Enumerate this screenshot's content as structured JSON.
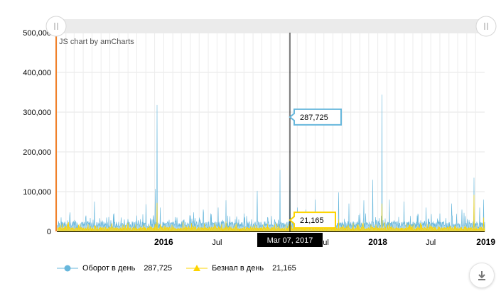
{
  "chart_data": {
    "type": "area",
    "credit": "JS chart by amCharts",
    "y_ticks": [
      "0",
      "100,000",
      "200,000",
      "300,000",
      "400,000",
      "500,000"
    ],
    "ylim": [
      0,
      500000
    ],
    "x_range": [
      "2015-01-01",
      "2019-01-01"
    ],
    "x_ticks": [
      {
        "label": "2016",
        "date": "2016-01-01",
        "major": true
      },
      {
        "label": "Jul",
        "date": "2016-07-01",
        "major": false
      },
      {
        "label": "Jul",
        "date": "2017-07-01",
        "major": false
      },
      {
        "label": "2018",
        "date": "2018-01-01",
        "major": true
      },
      {
        "label": "Jul",
        "date": "2018-07-01",
        "major": false
      },
      {
        "label": "2019",
        "date": "2019-01-01",
        "major": true
      }
    ],
    "grid": true,
    "series": [
      {
        "name": "Оборот в день",
        "color": "#67b7dc",
        "peaks": [
          {
            "date": "2015-01-05",
            "value": 10000
          },
          {
            "date": "2015-02-14",
            "value": 38000
          },
          {
            "date": "2015-04-01",
            "value": 22000
          },
          {
            "date": "2015-05-10",
            "value": 75000
          },
          {
            "date": "2015-07-04",
            "value": 28000
          },
          {
            "date": "2015-08-20",
            "value": 30000
          },
          {
            "date": "2015-10-01",
            "value": 40000
          },
          {
            "date": "2015-11-01",
            "value": 68000
          },
          {
            "date": "2015-11-20",
            "value": 30000
          },
          {
            "date": "2015-12-03",
            "value": 107000
          },
          {
            "date": "2015-12-09",
            "value": 318000
          },
          {
            "date": "2015-12-20",
            "value": 60000
          },
          {
            "date": "2016-02-15",
            "value": 35000
          },
          {
            "date": "2016-04-01",
            "value": 40000
          },
          {
            "date": "2016-05-15",
            "value": 55000
          },
          {
            "date": "2016-06-10",
            "value": 45000
          },
          {
            "date": "2016-07-05",
            "value": 60000
          },
          {
            "date": "2016-08-01",
            "value": 78000
          },
          {
            "date": "2016-10-01",
            "value": 45000
          },
          {
            "date": "2016-11-15",
            "value": 102000
          },
          {
            "date": "2016-12-20",
            "value": 35000
          },
          {
            "date": "2017-02-01",
            "value": 155000
          },
          {
            "date": "2017-03-07",
            "value": 287725
          },
          {
            "date": "2017-04-01",
            "value": 60000
          },
          {
            "date": "2017-05-01",
            "value": 55000
          },
          {
            "date": "2017-06-01",
            "value": 80000
          },
          {
            "date": "2017-07-15",
            "value": 45000
          },
          {
            "date": "2017-08-20",
            "value": 98000
          },
          {
            "date": "2017-09-25",
            "value": 70000
          },
          {
            "date": "2017-11-01",
            "value": 45000
          },
          {
            "date": "2017-11-15",
            "value": 78000
          },
          {
            "date": "2017-12-15",
            "value": 130000
          },
          {
            "date": "2018-01-15",
            "value": 344000
          },
          {
            "date": "2018-02-10",
            "value": 80000
          },
          {
            "date": "2018-04-01",
            "value": 75000
          },
          {
            "date": "2018-05-15",
            "value": 40000
          },
          {
            "date": "2018-06-15",
            "value": 60000
          },
          {
            "date": "2018-08-01",
            "value": 45000
          },
          {
            "date": "2018-09-10",
            "value": 70000
          },
          {
            "date": "2018-10-15",
            "value": 55000
          },
          {
            "date": "2018-11-25",
            "value": 135000
          },
          {
            "date": "2018-12-15",
            "value": 60000
          },
          {
            "date": "2018-12-28",
            "value": 80000
          }
        ]
      },
      {
        "name": "Безнал в день",
        "color": "#fdd400",
        "peaks": [
          {
            "date": "2015-12-09",
            "value": 72000
          },
          {
            "date": "2016-08-01",
            "value": 25000
          },
          {
            "date": "2017-03-07",
            "value": 21165
          },
          {
            "date": "2017-08-20",
            "value": 30000
          },
          {
            "date": "2018-01-15",
            "value": 70000
          },
          {
            "date": "2018-11-25",
            "value": 92000
          },
          {
            "date": "2018-12-28",
            "value": 35000
          }
        ]
      }
    ],
    "cursor": {
      "date_label": "Mar 07, 2017",
      "values": [
        "287,725",
        "21,165"
      ]
    },
    "legend": [
      {
        "name": "Оборот в день",
        "value": "287,725",
        "color": "#67b7dc",
        "marker": "circle"
      },
      {
        "name": "Безнал в день",
        "value": "21,165",
        "color": "#fdd400",
        "marker": "triangle"
      }
    ]
  },
  "icons": {
    "scrollbar_grip": "grip-icon",
    "download": "download-icon"
  }
}
